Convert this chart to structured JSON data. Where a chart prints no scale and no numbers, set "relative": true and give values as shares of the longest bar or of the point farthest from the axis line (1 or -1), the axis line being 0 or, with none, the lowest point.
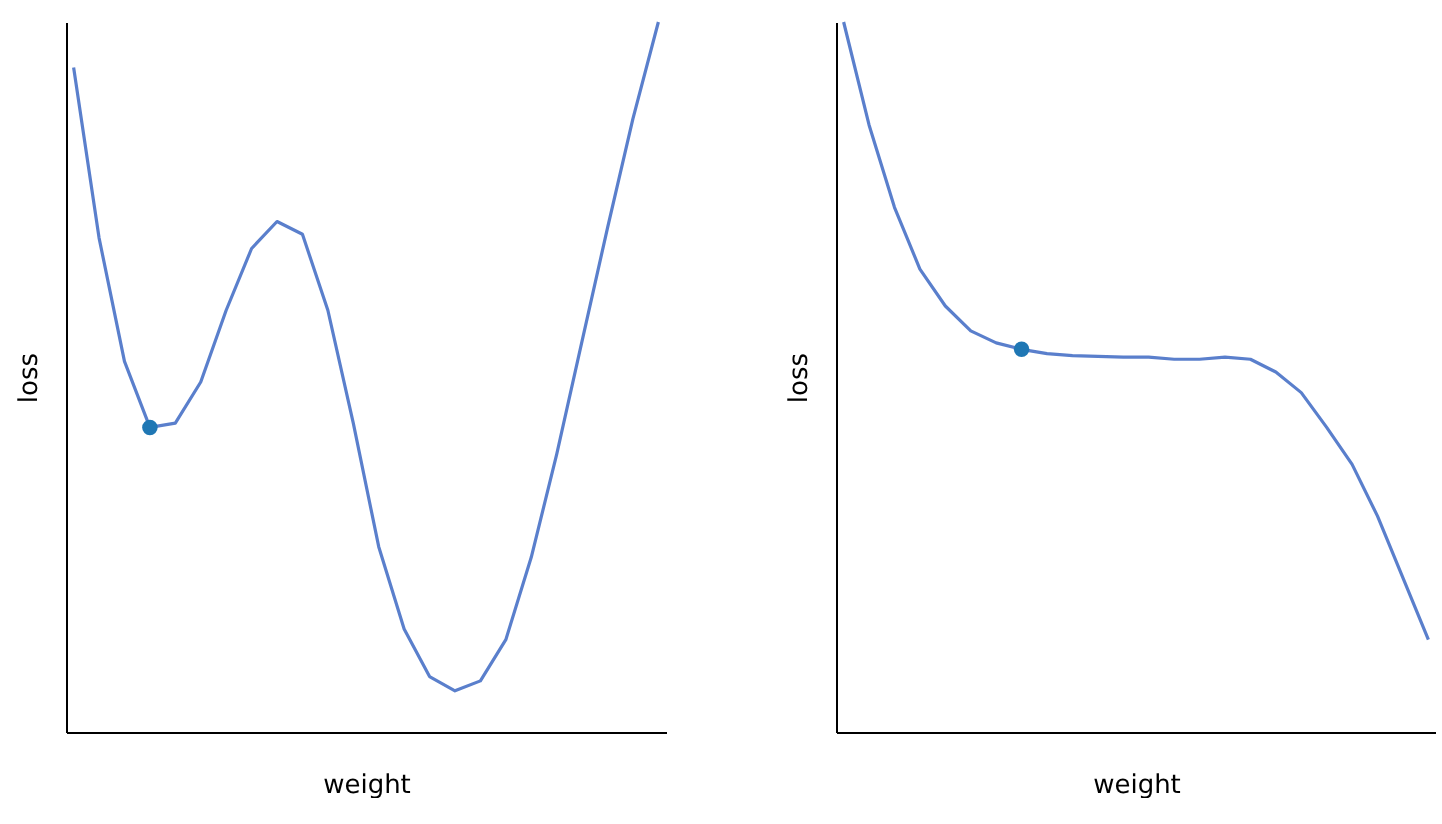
{
  "chart_data": [
    {
      "type": "line",
      "xlabel": "weight",
      "ylabel": "loss",
      "relative": true,
      "categories": [
        null,
        null,
        null,
        null,
        null,
        null,
        null,
        null,
        null,
        null,
        null,
        null,
        null,
        null,
        null,
        null,
        null,
        null,
        null,
        null,
        null,
        null,
        null,
        null
      ],
      "series": [
        {
          "color": "#5a7fcc",
          "values": [
            0.936,
            0.696,
            0.522,
            0.429,
            0.435,
            0.493,
            0.594,
            0.681,
            0.719,
            0.701,
            0.594,
            0.435,
            0.261,
            0.145,
            0.078,
            0.058,
            0.072,
            0.13,
            0.246,
            0.391,
            0.551,
            0.71,
            0.864,
            1
          ]
        }
      ]
    },
    {
      "type": "line",
      "xlabel": "weight",
      "ylabel": "loss",
      "relative": true,
      "categories": [
        null,
        null,
        null,
        null,
        null,
        null,
        null,
        null,
        null,
        null,
        null,
        null,
        null,
        null,
        null,
        null,
        null,
        null,
        null,
        null,
        null,
        null,
        null,
        null
      ],
      "series": [
        {
          "color": "#5a7fcc",
          "values": [
            1,
            0.855,
            0.739,
            0.652,
            0.6,
            0.565,
            0.548,
            0.539,
            0.533,
            0.53,
            0.529,
            0.528,
            0.528,
            0.525,
            0.525,
            0.528,
            0.525,
            0.507,
            0.478,
            0.429,
            0.377,
            0.304,
            0.217,
            0.13
          ]
        }
      ]
    }
  ]
}
